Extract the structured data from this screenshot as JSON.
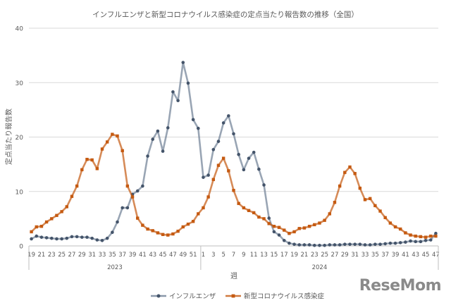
{
  "chart_data": {
    "type": "line",
    "title": "インフルエンザと新型コロナウイルス感染症の定点当たり報告数の推移（全国）",
    "xlabel": "週",
    "ylabel": "定点当たり報告数",
    "ylim": [
      0,
      40
    ],
    "yticks": [
      "0",
      "10",
      "20",
      "30",
      "40"
    ],
    "grid": "horizontal",
    "legend_position": "bottom",
    "categories": [
      "19",
      "20",
      "21",
      "22",
      "23",
      "24",
      "25",
      "26",
      "27",
      "28",
      "29",
      "30",
      "31",
      "32",
      "33",
      "34",
      "35",
      "36",
      "37",
      "38",
      "39",
      "40",
      "41",
      "42",
      "43",
      "44",
      "45",
      "46",
      "47",
      "48",
      "49",
      "50",
      "51",
      "52",
      "1",
      "2",
      "3",
      "4",
      "5",
      "6",
      "7",
      "8",
      "9",
      "10",
      "11",
      "12",
      "13",
      "14",
      "15",
      "16",
      "17",
      "18",
      "19",
      "20",
      "21",
      "22",
      "23",
      "24",
      "25",
      "26",
      "27",
      "28",
      "29",
      "30",
      "31",
      "32",
      "33",
      "34",
      "35",
      "36",
      "37",
      "38",
      "39",
      "40",
      "41",
      "42",
      "43",
      "44",
      "45",
      "46",
      "47"
    ],
    "year_groups": [
      {
        "label": "2023",
        "count": 34
      },
      {
        "label": "2024",
        "count": 47
      }
    ],
    "series": [
      {
        "name": "インフルエンザ",
        "color": "#6d7f94",
        "marker": "circle",
        "values": [
          1.3,
          1.8,
          1.6,
          1.5,
          1.4,
          1.3,
          1.3,
          1.4,
          1.7,
          1.7,
          1.6,
          1.6,
          1.4,
          1.1,
          1.0,
          1.4,
          2.5,
          4.4,
          7.0,
          7.0,
          9.5,
          10.1,
          11.0,
          16.5,
          19.6,
          21.1,
          17.4,
          21.7,
          28.3,
          26.7,
          33.7,
          29.9,
          23.2,
          21.6,
          12.6,
          13.0,
          17.7,
          19.2,
          22.6,
          23.9,
          20.6,
          16.8,
          14.0,
          16.1,
          17.2,
          14.1,
          11.2,
          5.1,
          2.6,
          2.0,
          1.0,
          0.5,
          0.3,
          0.2,
          0.2,
          0.2,
          0.1,
          0.1,
          0.1,
          0.2,
          0.2,
          0.2,
          0.3,
          0.3,
          0.3,
          0.3,
          0.2,
          0.2,
          0.3,
          0.3,
          0.4,
          0.5,
          0.5,
          0.6,
          0.7,
          0.9,
          0.8,
          0.8,
          1.0,
          1.1,
          2.3
        ]
      },
      {
        "name": "新型コロナウイルス感染症",
        "color": "#c55a11",
        "marker": "square",
        "values": [
          2.6,
          3.5,
          3.6,
          4.4,
          5.0,
          5.6,
          6.3,
          7.2,
          9.1,
          11.0,
          14.0,
          15.9,
          15.8,
          14.2,
          17.8,
          19.1,
          20.5,
          20.2,
          17.5,
          11.0,
          9.0,
          5.1,
          3.8,
          3.1,
          2.8,
          2.4,
          2.1,
          2.0,
          2.2,
          2.7,
          3.5,
          4.0,
          4.5,
          5.9,
          7.0,
          9.0,
          12.2,
          14.8,
          16.1,
          13.8,
          10.2,
          7.8,
          7.0,
          6.5,
          6.1,
          5.3,
          5.0,
          4.1,
          3.6,
          3.4,
          2.9,
          2.3,
          2.6,
          3.2,
          3.3,
          3.6,
          3.9,
          4.2,
          4.7,
          5.9,
          8.0,
          11.0,
          13.5,
          14.5,
          13.3,
          10.6,
          8.5,
          8.7,
          7.4,
          6.4,
          5.2,
          4.2,
          3.5,
          3.1,
          2.4,
          2.0,
          1.8,
          1.7,
          1.6,
          1.8,
          1.8
        ]
      }
    ]
  },
  "watermark": "ReseMom"
}
